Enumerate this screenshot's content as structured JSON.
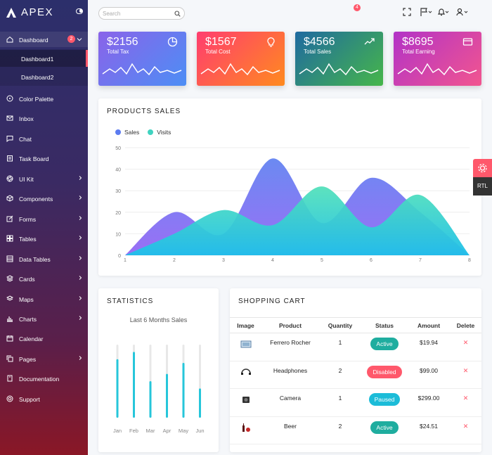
{
  "brand": {
    "name": "APEX"
  },
  "sidebar": {
    "dashboard": {
      "label": "Dashboard",
      "badge": "2"
    },
    "sub_items": [
      {
        "label": "Dashboard1"
      },
      {
        "label": "Dashboard2"
      }
    ],
    "items": [
      {
        "label": "Color Palette",
        "icon": "palette-icon"
      },
      {
        "label": "Inbox",
        "icon": "mail-icon"
      },
      {
        "label": "Chat",
        "icon": "chat-icon"
      },
      {
        "label": "Task Board",
        "icon": "clipboard-icon"
      },
      {
        "label": "UI Kit",
        "icon": "aperture-icon"
      },
      {
        "label": "Components",
        "icon": "box-icon"
      },
      {
        "label": "Forms",
        "icon": "edit-icon"
      },
      {
        "label": "Tables",
        "icon": "grid-icon"
      },
      {
        "label": "Data Tables",
        "icon": "list-icon"
      },
      {
        "label": "Cards",
        "icon": "layers-icon"
      },
      {
        "label": "Maps",
        "icon": "map-icon"
      },
      {
        "label": "Charts",
        "icon": "bar-chart-icon"
      },
      {
        "label": "Calendar",
        "icon": "calendar-icon"
      },
      {
        "label": "Pages",
        "icon": "copy-icon"
      },
      {
        "label": "Documentation",
        "icon": "book-icon"
      },
      {
        "label": "Support",
        "icon": "life-buoy-icon"
      }
    ]
  },
  "topbar": {
    "search_placeholder": "Search",
    "notification_count": "4"
  },
  "stats_cards": [
    {
      "value": "$2156",
      "label": "Total Tax",
      "icon": "pie-chart-icon"
    },
    {
      "value": "$1567",
      "label": "Total Cost",
      "icon": "bulb-icon"
    },
    {
      "value": "$4566",
      "label": "Total Sales",
      "icon": "trending-up-icon"
    },
    {
      "value": "$8695",
      "label": "Total Earning",
      "icon": "credit-card-icon"
    }
  ],
  "products_sales": {
    "title": "PRODUCTS SALES"
  },
  "chart_data": [
    {
      "type": "area",
      "x": [
        1,
        2,
        3,
        4,
        5,
        6,
        7,
        8
      ],
      "series": [
        {
          "name": "Sales",
          "color": "#5b7bf0",
          "values": [
            0,
            20,
            10,
            45,
            15,
            36,
            20,
            0
          ]
        },
        {
          "name": "Visits",
          "color": "#40d3c0",
          "values": [
            0,
            10,
            21,
            14,
            32,
            13,
            28,
            0
          ]
        }
      ],
      "ylim": [
        0,
        50
      ],
      "yticks": [
        0,
        10,
        20,
        30,
        40,
        50
      ],
      "legend": "top-left",
      "grid": true
    },
    {
      "type": "bar",
      "title": "Last 6 Months Sales",
      "categories": [
        "Jan",
        "Feb",
        "Mar",
        "Apr",
        "May",
        "Jun"
      ],
      "values": [
        80,
        90,
        50,
        60,
        75,
        40
      ],
      "ylim": [
        0,
        100
      ],
      "color": "#26c6da"
    }
  ],
  "statistics": {
    "title": "STATISTICS",
    "subtitle": "Last 6 Months Sales"
  },
  "cart": {
    "title": "SHOPPING CART",
    "headers": [
      "Image",
      "Product",
      "Quantity",
      "Status",
      "Amount",
      "Delete"
    ],
    "rows": [
      {
        "product": "Ferrero Rocher",
        "quantity": "1",
        "status": "Active",
        "status_color": "#1fad9f",
        "amount": "$19.94",
        "image": "chocolate-box-image"
      },
      {
        "product": "Headphones",
        "quantity": "2",
        "status": "Disabled",
        "status_color": "#ff586b",
        "amount": "$99.00",
        "image": "headphones-image"
      },
      {
        "product": "Camera",
        "quantity": "1",
        "status": "Paused",
        "status_color": "#1cbcd8",
        "amount": "$299.00",
        "image": "camera-image"
      },
      {
        "product": "Beer",
        "quantity": "2",
        "status": "Active",
        "status_color": "#1fad9f",
        "amount": "$24.51",
        "image": "beer-image"
      }
    ]
  },
  "customizer": {
    "rtl_label": "RTL"
  }
}
